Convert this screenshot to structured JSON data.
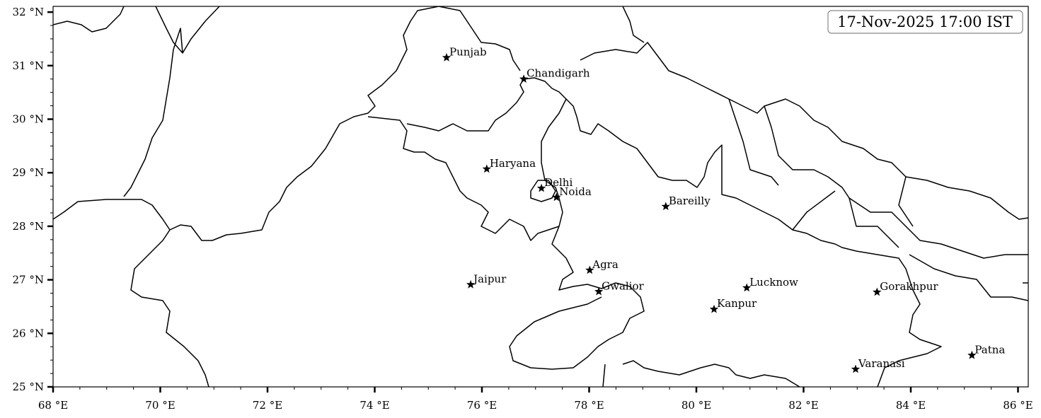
{
  "map": {
    "title": "17-Nov-2025 17:00 IST",
    "extent": {
      "lon": [
        68,
        86.2
      ],
      "lat": [
        25,
        32.1
      ]
    },
    "x_ticks": [
      {
        "value": 68,
        "label": "68 °E"
      },
      {
        "value": 70,
        "label": "70 °E"
      },
      {
        "value": 72,
        "label": "72 °E"
      },
      {
        "value": 74,
        "label": "74 °E"
      },
      {
        "value": 76,
        "label": "76 °E"
      },
      {
        "value": 78,
        "label": "78 °E"
      },
      {
        "value": 80,
        "label": "80 °E"
      },
      {
        "value": 82,
        "label": "82 °E"
      },
      {
        "value": 84,
        "label": "84 °E"
      },
      {
        "value": 86,
        "label": "86 °E"
      }
    ],
    "y_ticks": [
      {
        "value": 25,
        "label": "25 °N"
      },
      {
        "value": 26,
        "label": "26 °N"
      },
      {
        "value": 27,
        "label": "27 °N"
      },
      {
        "value": 28,
        "label": "28 °N"
      },
      {
        "value": 29,
        "label": "29 °N"
      },
      {
        "value": 30,
        "label": "30 °N"
      },
      {
        "value": 31,
        "label": "31 °N"
      },
      {
        "value": 32,
        "label": "32 °N"
      }
    ],
    "minor_tick_step": 0.5,
    "marker": "star",
    "marker_color": "#000000",
    "cities": [
      {
        "name": "Punjab",
        "lon": 75.34,
        "lat": 31.15
      },
      {
        "name": "Chandigarh",
        "lon": 76.78,
        "lat": 30.75
      },
      {
        "name": "Haryana",
        "lon": 76.09,
        "lat": 29.07
      },
      {
        "name": "Delhi",
        "lon": 77.11,
        "lat": 28.71
      },
      {
        "name": "Noida",
        "lon": 77.39,
        "lat": 28.54
      },
      {
        "name": "Bareilly",
        "lon": 79.43,
        "lat": 28.37
      },
      {
        "name": "Agra",
        "lon": 78.01,
        "lat": 27.18
      },
      {
        "name": "Jaipur",
        "lon": 75.79,
        "lat": 26.91
      },
      {
        "name": "Gwalior",
        "lon": 78.18,
        "lat": 26.78
      },
      {
        "name": "Lucknow",
        "lon": 80.94,
        "lat": 26.85
      },
      {
        "name": "Kanpur",
        "lon": 80.33,
        "lat": 26.45
      },
      {
        "name": "Gorakhpur",
        "lon": 83.37,
        "lat": 26.77
      },
      {
        "name": "Varanasi",
        "lon": 82.97,
        "lat": 25.33
      },
      {
        "name": "Patna",
        "lon": 85.14,
        "lat": 25.59
      }
    ]
  }
}
